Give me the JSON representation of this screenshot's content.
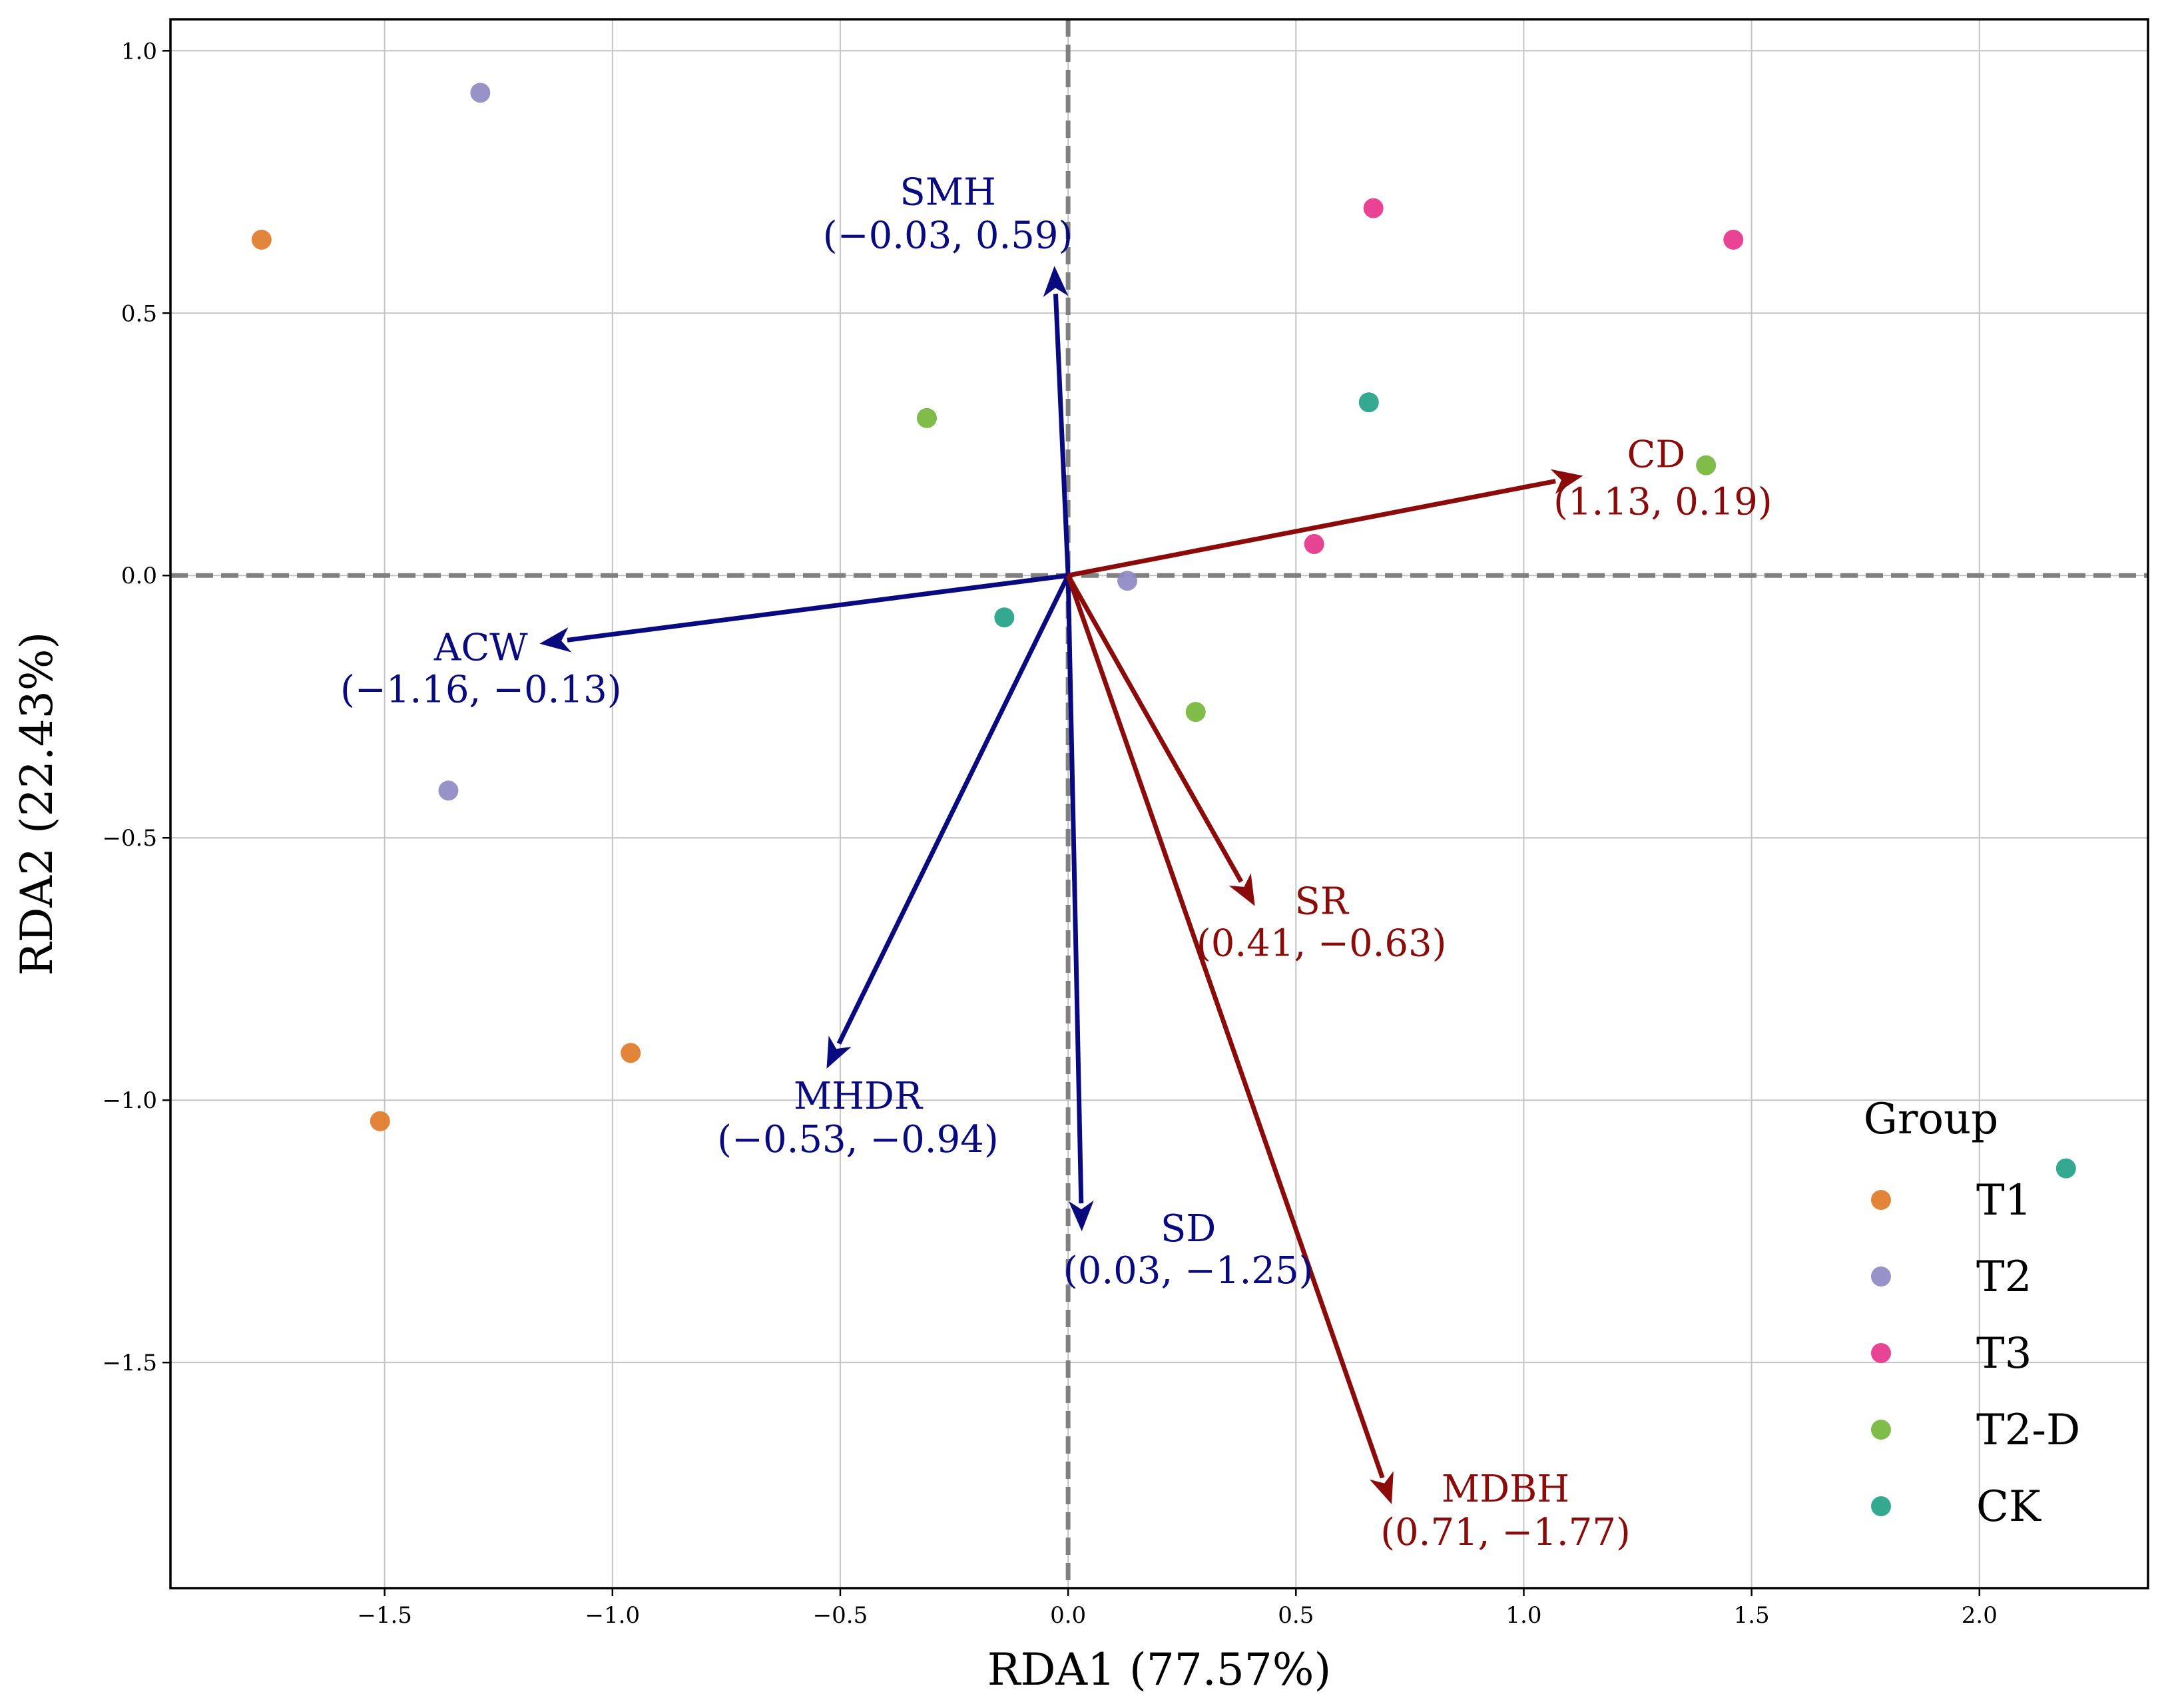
{
  "chart_data": {
    "type": "scatter",
    "title": "",
    "xlabel": "RDA1 (77.57%)",
    "ylabel": "RDA2 (22.43%)",
    "xlim": [
      -1.97,
      2.37
    ],
    "ylim": [
      -1.93,
      1.06
    ],
    "xticks": [
      -1.5,
      -1.0,
      -0.5,
      0.0,
      0.5,
      1.0,
      1.5,
      2.0
    ],
    "xtick_labels": [
      "−1.5",
      "−1.0",
      "−0.5",
      "0.0",
      "0.5",
      "1.0",
      "1.5",
      "2.0"
    ],
    "yticks": [
      1.0,
      0.5,
      0.0,
      -0.5,
      -1.0,
      -1.5
    ],
    "ytick_labels": [
      "1.0",
      "0.5",
      "0.0",
      "−0.5",
      "−1.0",
      "−1.5"
    ],
    "grid": true,
    "legend": {
      "title": "Group",
      "position": "bottom-right",
      "entries": [
        {
          "label": "T1",
          "color": "#E07B2A"
        },
        {
          "label": "T2",
          "color": "#8E89C2"
        },
        {
          "label": "T3",
          "color": "#E7338A"
        },
        {
          "label": "T2-D",
          "color": "#74B63B"
        },
        {
          "label": "CK",
          "color": "#24A187"
        }
      ]
    },
    "points": [
      {
        "group": "T1",
        "x": -1.77,
        "y": 0.64
      },
      {
        "group": "T1",
        "x": -1.51,
        "y": -1.04
      },
      {
        "group": "T1",
        "x": -0.96,
        "y": -0.91
      },
      {
        "group": "T2",
        "x": -1.29,
        "y": 0.92
      },
      {
        "group": "T2",
        "x": -1.36,
        "y": -0.41
      },
      {
        "group": "T2",
        "x": 0.13,
        "y": -0.01
      },
      {
        "group": "T3",
        "x": 0.67,
        "y": 0.7
      },
      {
        "group": "T3",
        "x": 1.46,
        "y": 0.64
      },
      {
        "group": "T3",
        "x": 0.54,
        "y": 0.06
      },
      {
        "group": "T2-D",
        "x": -0.31,
        "y": 0.3
      },
      {
        "group": "T2-D",
        "x": 1.4,
        "y": 0.21
      },
      {
        "group": "T2-D",
        "x": 0.28,
        "y": -0.26
      },
      {
        "group": "CK",
        "x": 0.66,
        "y": 0.33
      },
      {
        "group": "CK",
        "x": -0.14,
        "y": -0.08
      },
      {
        "group": "CK",
        "x": 2.19,
        "y": -1.13
      }
    ],
    "vectors": [
      {
        "name": "SMH",
        "coords": "(−0.03, 0.59)",
        "x": -0.03,
        "y": 0.59,
        "color": "#0A0A80",
        "label_anchor": "above"
      },
      {
        "name": "CD",
        "coords": "(1.13, 0.19)",
        "x": 1.13,
        "y": 0.19,
        "color": "#8B0A0A",
        "label_anchor": "right"
      },
      {
        "name": "ACW",
        "coords": "(−1.16, −0.13)",
        "x": -1.16,
        "y": -0.13,
        "color": "#0A0A80",
        "label_anchor": "below"
      },
      {
        "name": "SR",
        "coords": "(0.41, −0.63)",
        "x": 0.41,
        "y": -0.63,
        "color": "#8B0A0A",
        "label_anchor": "right"
      },
      {
        "name": "MHDR",
        "coords": "(−0.53, −0.94)",
        "x": -0.53,
        "y": -0.94,
        "color": "#0A0A80",
        "label_anchor": "below"
      },
      {
        "name": "SD",
        "coords": "(0.03, −1.25)",
        "x": 0.03,
        "y": -1.25,
        "color": "#0A0A80",
        "label_anchor": "below-right"
      },
      {
        "name": "MDBH",
        "coords": "(0.71, −1.77)",
        "x": 0.71,
        "y": -1.77,
        "color": "#8B0A0A",
        "label_anchor": "right"
      }
    ]
  }
}
